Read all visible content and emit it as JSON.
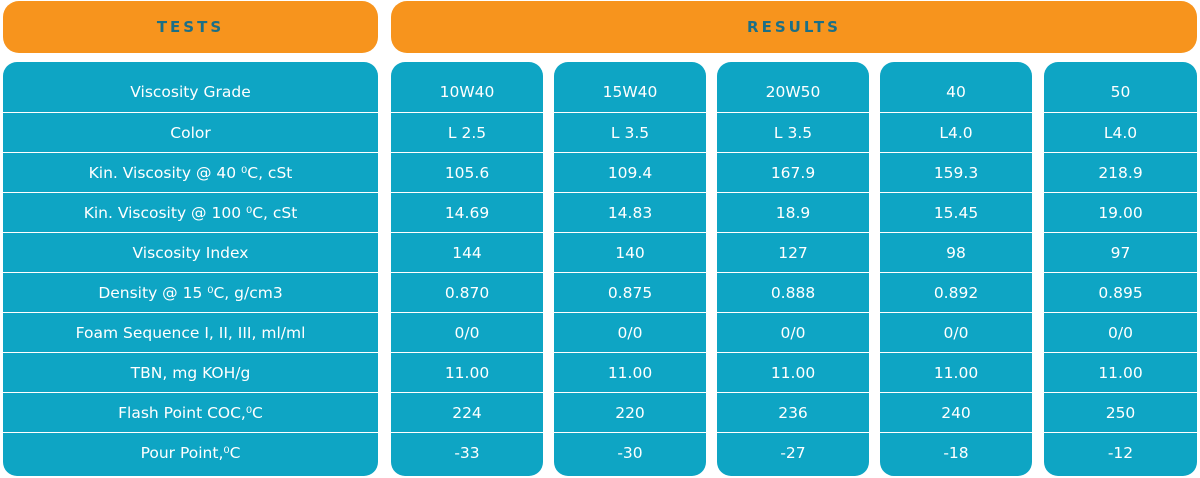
{
  "headers": {
    "tests": "TESTS",
    "results": "RESULTS"
  },
  "colors": {
    "header_bg": "#f7941d",
    "header_text": "#1b6f86",
    "cell_bg": "#0ea5c4",
    "cell_text": "#ffffff"
  },
  "tests": [
    "Viscosity Grade",
    "Color",
    "Kin. Viscosity @ 40 ⁰C, cSt",
    "Kin. Viscosity @ 100 ⁰C, cSt",
    "Viscosity Index",
    "Density @ 15 ⁰C, g/cm3",
    "Foam Sequence I, II, III, ml/ml",
    "TBN, mg KOH/g",
    "Flash Point COC,⁰C",
    "Pour Point,⁰C"
  ],
  "results": [
    [
      "10W40",
      "L 2.5",
      "105.6",
      "14.69",
      "144",
      "0.870",
      "0/0",
      "11.00",
      "224",
      "-33"
    ],
    [
      "15W40",
      "L 3.5",
      "109.4",
      "14.83",
      "140",
      "0.875",
      "0/0",
      "11.00",
      "220",
      "-30"
    ],
    [
      "20W50",
      "L 3.5",
      "167.9",
      "18.9",
      "127",
      "0.888",
      "0/0",
      "11.00",
      "236",
      "-27"
    ],
    [
      "40",
      "L4.0",
      "159.3",
      "15.45",
      "98",
      "0.892",
      "0/0",
      "11.00",
      "240",
      "-18"
    ],
    [
      "50",
      "L4.0",
      "218.9",
      "19.00",
      "97",
      "0.895",
      "0/0",
      "11.00",
      "250",
      "-12"
    ]
  ]
}
